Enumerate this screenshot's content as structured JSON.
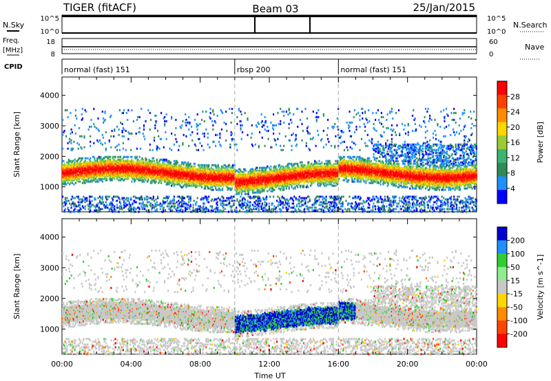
{
  "header": {
    "radar_title": "TIGER (fitACF)",
    "beam": "Beam 03",
    "date": "25/Jan/2015"
  },
  "top_panels": {
    "nsky_label": "N.Sky",
    "nsky_ticks": [
      "10^5",
      "10^0"
    ],
    "nsearch_label": "N.Search",
    "nsearch_ticks": [
      "10^5",
      "10^0"
    ],
    "freq_label_line1": "Freq.",
    "freq_label_line2": "[MHz]",
    "freq_ticks": [
      "18",
      "8"
    ],
    "nave_label": "Nave",
    "nave_ticks": [
      "60",
      "0"
    ],
    "cpid_label": "CPID",
    "cpid_segments": [
      {
        "label": "normal (fast) 151",
        "start_hour": 0
      },
      {
        "label": "rbsp 200",
        "start_hour": 10
      },
      {
        "label": "normal (fast) 151",
        "start_hour": 16
      }
    ]
  },
  "chart_data": [
    {
      "type": "heatmap",
      "title": "",
      "parameter": "Power",
      "xlabel": "Time UT",
      "ylabel": "Slant Range [km]",
      "xlim_hours": [
        0,
        24
      ],
      "ylim_km": [
        180,
        4600
      ],
      "yticks": [
        1000,
        2000,
        3000,
        4000
      ],
      "colorbar_label": "Power [dB]",
      "colorbar_ticks": [
        "28",
        "24",
        "20",
        "16",
        "12",
        "8",
        "4"
      ],
      "colorbar_colors": [
        "#ff0000",
        "#ff4000",
        "#ff8c00",
        "#ffd700",
        "#9acd32",
        "#3cb371",
        "#2e8b57",
        "#1e90ff",
        "#0000ff"
      ],
      "description_bands_km": [
        {
          "start_hour": 0,
          "end_hour": 24,
          "center_km": 1450,
          "width_km": 400
        }
      ]
    },
    {
      "type": "heatmap",
      "title": "",
      "parameter": "Velocity",
      "xlabel": "Time UT",
      "ylabel": "Slant Range [km]",
      "xlim_hours": [
        0,
        24
      ],
      "ylim_km": [
        180,
        4600
      ],
      "yticks": [
        1000,
        2000,
        3000,
        4000
      ],
      "colorbar_label": "Velocity [m s^-1]",
      "colorbar_ticks": [
        "200",
        "100",
        "50",
        "15",
        "-15",
        "-50",
        "-100",
        "-200"
      ],
      "colorbar_colors": [
        "#0000cd",
        "#1e90ff",
        "#32cd32",
        "#90ee90",
        "#c8c8c8",
        "#ffd700",
        "#ff8c00",
        "#ff4500",
        "#ff0000"
      ]
    }
  ],
  "x_axis": {
    "label": "Time UT",
    "ticks": [
      "00:00",
      "04:00",
      "08:00",
      "12:00",
      "16:00",
      "20:00",
      "00:00"
    ]
  }
}
